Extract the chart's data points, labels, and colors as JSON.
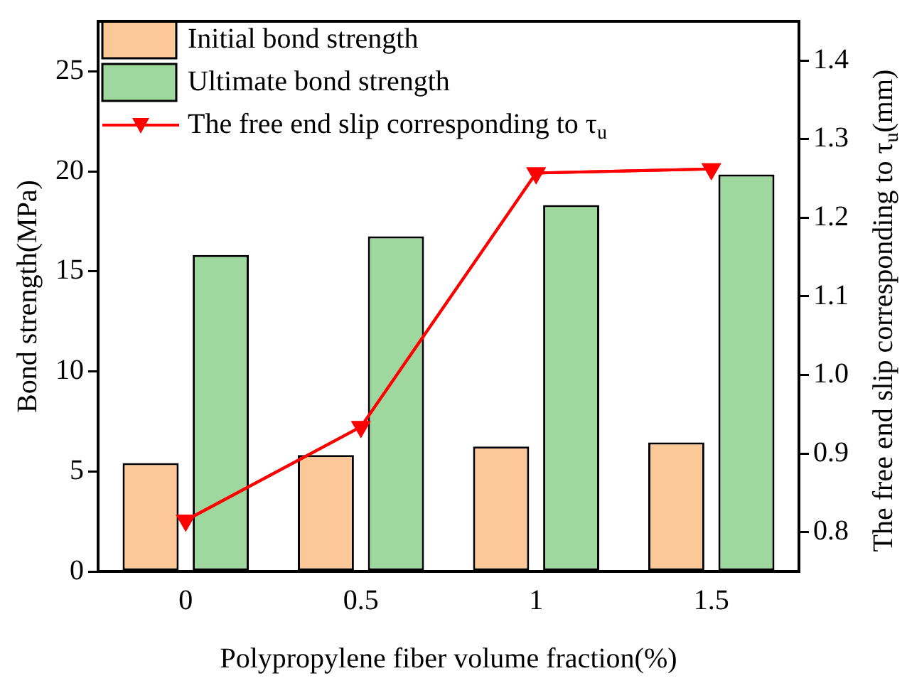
{
  "chart_data": {
    "type": "bar",
    "xlabel": "Polypropylene fiber volume fraction(%)",
    "ylabel": "Bond strength(MPa)",
    "y2label": "The free end slip corresponding to τ$_{u}$(mm)",
    "categories": [
      "0",
      "0.5",
      "1",
      "1.5"
    ],
    "series": [
      {
        "name": "Initial bond strength",
        "color": "#fdc897",
        "values": [
          5.42,
          5.82,
          6.24,
          6.45
        ]
      },
      {
        "name": "Ultimate bond strength",
        "color": "#9fd89f",
        "values": [
          15.82,
          16.75,
          18.32,
          19.84
        ]
      },
      {
        "name": "The free end slip corresponding to τ$_{u}$",
        "type": "line",
        "axis": "y2",
        "color": "#ff0000",
        "marker": "triangle",
        "values": [
          0.815,
          0.934,
          1.257,
          1.262
        ]
      }
    ],
    "ylim": [
      0,
      27.5
    ],
    "yticks": [
      0,
      5,
      10,
      15,
      20,
      25
    ],
    "y2lim": [
      0.75,
      1.45
    ],
    "y2ticks": [
      0.8,
      0.9,
      {
        "value": 1,
        "label": "1.0"
      },
      1.1,
      1.2,
      1.3,
      1.4
    ],
    "legend": "top left",
    "grid": false
  }
}
